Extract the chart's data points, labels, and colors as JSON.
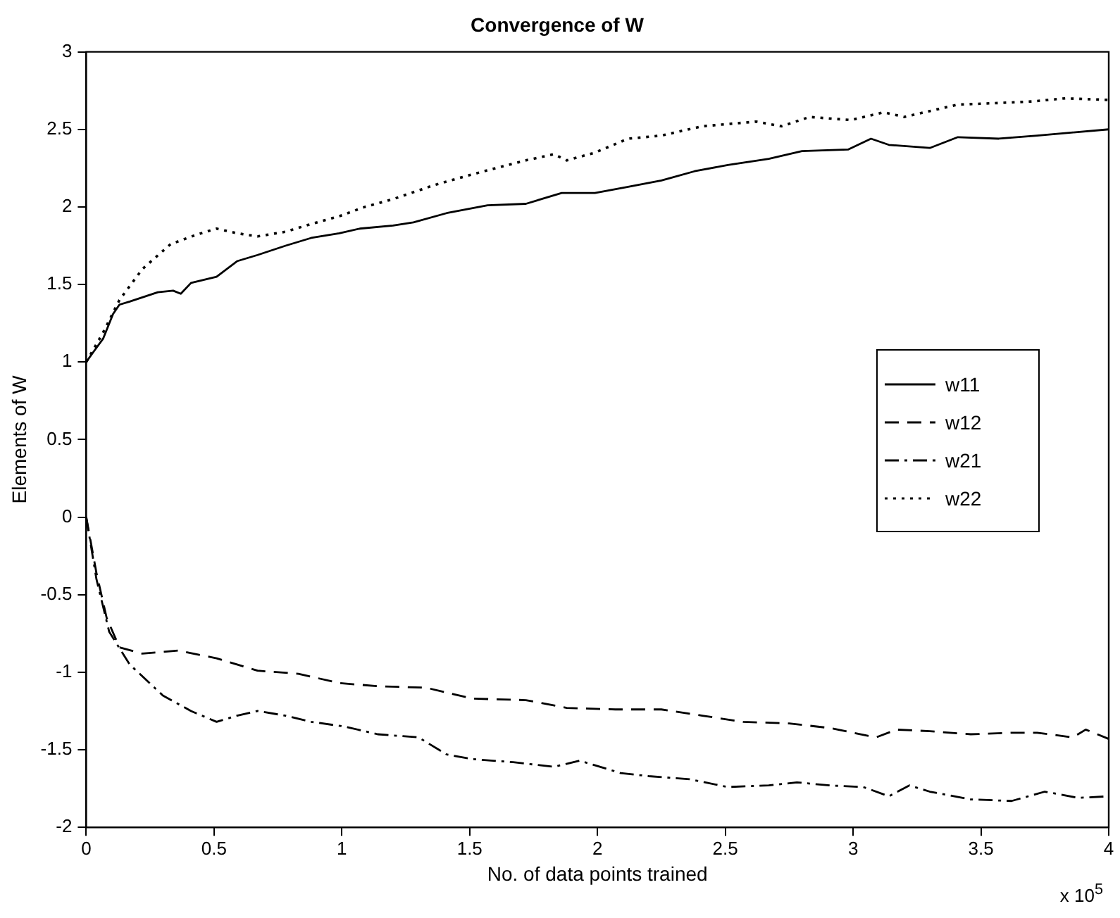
{
  "chart_data": {
    "type": "line",
    "title": "Convergence of W",
    "xlabel": "No. of data points trained",
    "ylabel": "Elements of W",
    "annotations": [
      "x 10$^{5}$"
    ],
    "xlim": [
      0,
      4
    ],
    "xticks": [
      0,
      0.5,
      1,
      1.5,
      2,
      2.5,
      3,
      3.5,
      4
    ],
    "ylim": [
      -2,
      3
    ],
    "yticks": [
      -2,
      -1.5,
      -1,
      -0.5,
      0,
      0.5,
      1,
      1.5,
      2,
      2.5,
      3
    ],
    "grid": false,
    "legend": "right",
    "marker": "none",
    "series": [
      {
        "name": "w11",
        "color": "#000000",
        "line_style": "solid",
        "x": [
          0,
          0.026,
          0.066,
          0.105,
          0.13,
          0.17,
          0.28,
          0.34,
          0.37,
          0.41,
          0.51,
          0.59,
          0.67,
          0.78,
          0.88,
          0.99,
          1.07,
          1.2,
          1.28,
          1.41,
          1.57,
          1.72,
          1.86,
          1.99,
          2.12,
          2.25,
          2.38,
          2.51,
          2.67,
          2.8,
          2.98,
          3.07,
          3.14,
          3.3,
          3.41,
          3.57,
          3.72,
          3.86,
          4
        ],
        "values": [
          1.0,
          1.06,
          1.15,
          1.31,
          1.37,
          1.39,
          1.45,
          1.46,
          1.44,
          1.51,
          1.55,
          1.65,
          1.69,
          1.75,
          1.8,
          1.83,
          1.86,
          1.88,
          1.9,
          1.96,
          2.01,
          2.02,
          2.09,
          2.09,
          2.13,
          2.17,
          2.23,
          2.27,
          2.31,
          2.36,
          2.37,
          2.44,
          2.4,
          2.38,
          2.45,
          2.44,
          2.46,
          2.48,
          2.5
        ]
      },
      {
        "name": "w12",
        "color": "#000000",
        "line_style": "dashed",
        "x": [
          0,
          0.04,
          0.08,
          0.13,
          0.22,
          0.36,
          0.51,
          0.67,
          0.83,
          0.99,
          1.14,
          1.33,
          1.51,
          1.72,
          1.88,
          2.07,
          2.25,
          2.41,
          2.57,
          2.75,
          2.91,
          3.09,
          3.17,
          3.3,
          3.46,
          3.62,
          3.72,
          3.86,
          3.91,
          4
        ],
        "values": [
          0,
          -0.36,
          -0.65,
          -0.84,
          -0.88,
          -0.86,
          -0.91,
          -0.99,
          -1.01,
          -1.07,
          -1.09,
          -1.1,
          -1.17,
          -1.18,
          -1.23,
          -1.24,
          -1.24,
          -1.28,
          -1.32,
          -1.33,
          -1.36,
          -1.42,
          -1.37,
          -1.38,
          -1.4,
          -1.39,
          -1.39,
          -1.42,
          -1.37,
          -1.43
        ]
      },
      {
        "name": "w21",
        "color": "#000000",
        "line_style": "dashdot",
        "x": [
          0,
          0.04,
          0.09,
          0.17,
          0.3,
          0.41,
          0.51,
          0.59,
          0.67,
          0.78,
          0.88,
          1.01,
          1.14,
          1.3,
          1.41,
          1.51,
          1.67,
          1.83,
          1.93,
          2.09,
          2.2,
          2.36,
          2.51,
          2.67,
          2.78,
          2.91,
          3.04,
          3.14,
          3.22,
          3.3,
          3.46,
          3.62,
          3.75,
          3.88,
          4
        ],
        "values": [
          0,
          -0.4,
          -0.74,
          -0.95,
          -1.15,
          -1.25,
          -1.32,
          -1.28,
          -1.25,
          -1.28,
          -1.32,
          -1.35,
          -1.4,
          -1.42,
          -1.53,
          -1.56,
          -1.58,
          -1.61,
          -1.57,
          -1.65,
          -1.67,
          -1.69,
          -1.74,
          -1.73,
          -1.71,
          -1.73,
          -1.74,
          -1.8,
          -1.73,
          -1.77,
          -1.82,
          -1.83,
          -1.77,
          -1.81,
          -1.8
        ]
      },
      {
        "name": "w22",
        "color": "#000000",
        "line_style": "dotted",
        "x": [
          0,
          0.066,
          0.13,
          0.22,
          0.33,
          0.43,
          0.51,
          0.59,
          0.67,
          0.78,
          0.88,
          0.99,
          1.09,
          1.2,
          1.36,
          1.51,
          1.72,
          1.83,
          1.88,
          1.99,
          2.12,
          2.25,
          2.41,
          2.62,
          2.72,
          2.83,
          2.99,
          3.12,
          3.2,
          3.41,
          3.57,
          3.7,
          3.83,
          4
        ],
        "values": [
          1.0,
          1.19,
          1.4,
          1.6,
          1.76,
          1.82,
          1.86,
          1.83,
          1.81,
          1.84,
          1.89,
          1.94,
          2.0,
          2.05,
          2.14,
          2.21,
          2.3,
          2.34,
          2.3,
          2.35,
          2.44,
          2.46,
          2.52,
          2.55,
          2.52,
          2.58,
          2.56,
          2.61,
          2.58,
          2.66,
          2.67,
          2.68,
          2.7,
          2.69
        ]
      }
    ]
  }
}
